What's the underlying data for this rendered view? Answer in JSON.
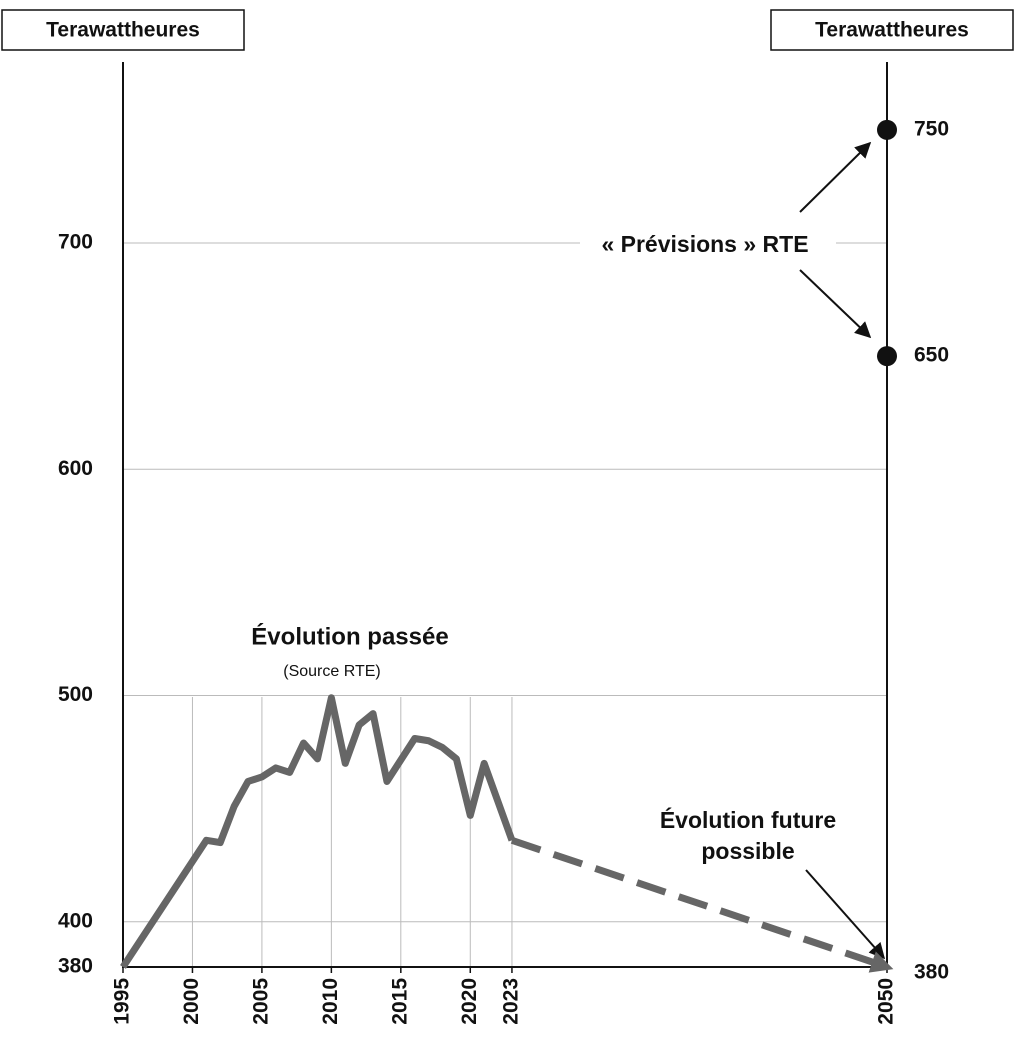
{
  "chart_data": {
    "type": "line",
    "ylabel": "Terawattheures",
    "y2label": "Terawattheures",
    "xlim": [
      1995,
      2050
    ],
    "xticks": [
      1995,
      2000,
      2005,
      2010,
      2015,
      2020,
      2023,
      2050
    ],
    "ylim": [
      380,
      780
    ],
    "yticks": [
      380,
      400,
      500,
      600,
      700
    ],
    "y2lim": [
      380,
      780
    ],
    "y2ticks": [
      380,
      650,
      750
    ],
    "grid": true,
    "series": [
      {
        "color": "#666666",
        "style": "solid",
        "x": [
          1995,
          2001,
          2002,
          2003,
          2004,
          2005,
          2006,
          2007,
          2008,
          2009,
          2010,
          2011,
          2012,
          2013,
          2014,
          2016,
          2017,
          2018,
          2019,
          2020,
          2021,
          2023
        ],
        "values": [
          380,
          436,
          435,
          451,
          462,
          464,
          468,
          466,
          479,
          472,
          499,
          470,
          487,
          492,
          462,
          481,
          480,
          477,
          472,
          447,
          470,
          436
        ]
      },
      {
        "color": "#666666",
        "style": "dashed",
        "x": [
          2023,
          2050
        ],
        "values": [
          436,
          380
        ]
      },
      {
        "color": "#111111",
        "style": "points",
        "axis": "y2",
        "x": [
          2050,
          2050
        ],
        "values": [
          750,
          650
        ]
      }
    ],
    "annotations": [
      "Évolution passée",
      "(Source RTE)",
      "« Prévisions » RTE",
      "Évolution future",
      "possible"
    ]
  }
}
